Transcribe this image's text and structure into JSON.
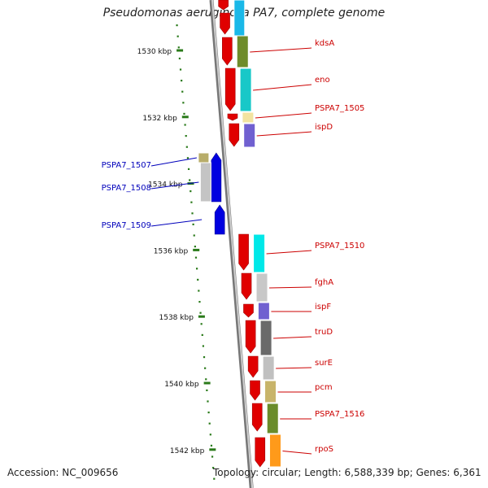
{
  "title": "Pseudomonas aeruginosa PA7, complete genome",
  "footer": {
    "accession": "Accession: NC_009656",
    "summary": "Topology: circular; Length: 6,588,339 bp; Genes: 6,361"
  },
  "colors": {
    "forward_strand_arrow": "#e00000",
    "reverse_strand_arrow": "#0000e0",
    "forward_label": "#cc0000",
    "reverse_label": "#0000bb",
    "scale_tick": "#2a7a1a",
    "axis": "#888888"
  },
  "scale": {
    "unit": "kbp",
    "ticks": [
      {
        "label": "1530 kbp",
        "kbp": 1530
      },
      {
        "label": "1532 kbp",
        "kbp": 1532
      },
      {
        "label": "1534 kbp",
        "kbp": 1534
      },
      {
        "label": "1536 kbp",
        "kbp": 1536
      },
      {
        "label": "1538 kbp",
        "kbp": 1538
      },
      {
        "label": "1540 kbp",
        "kbp": 1540
      },
      {
        "label": "1542 kbp",
        "kbp": 1542
      }
    ]
  },
  "genes": [
    {
      "name": "kdsA",
      "strand": "+",
      "color": "#6e8c2a"
    },
    {
      "name": "eno",
      "strand": "+",
      "color": "#18c8c8"
    },
    {
      "name": "PSPA7_1505",
      "strand": "+",
      "color": "#f2e3a0"
    },
    {
      "name": "ispD",
      "strand": "+",
      "color": "#7060d0"
    },
    {
      "name": "PSPA7_1507",
      "strand": "-",
      "color": "#b8ad6a"
    },
    {
      "name": "PSPA7_1508",
      "strand": "-",
      "color": "#c4c4c4"
    },
    {
      "name": "PSPA7_1509",
      "strand": "-",
      "color": "#ffffff"
    },
    {
      "name": "PSPA7_1510",
      "strand": "+",
      "color": "#00e8e8"
    },
    {
      "name": "fghA",
      "strand": "+",
      "color": "#c8c8c8"
    },
    {
      "name": "ispF",
      "strand": "+",
      "color": "#7060d0"
    },
    {
      "name": "truD",
      "strand": "+",
      "color": "#6a6a6a"
    },
    {
      "name": "surE",
      "strand": "+",
      "color": "#c0c0c0"
    },
    {
      "name": "pcm",
      "strand": "+",
      "color": "#c8b46a"
    },
    {
      "name": "PSPA7_1516",
      "strand": "+",
      "color": "#6a8c2a"
    },
    {
      "name": "rpoS",
      "strand": "+",
      "color": "#ff9a1a"
    }
  ]
}
